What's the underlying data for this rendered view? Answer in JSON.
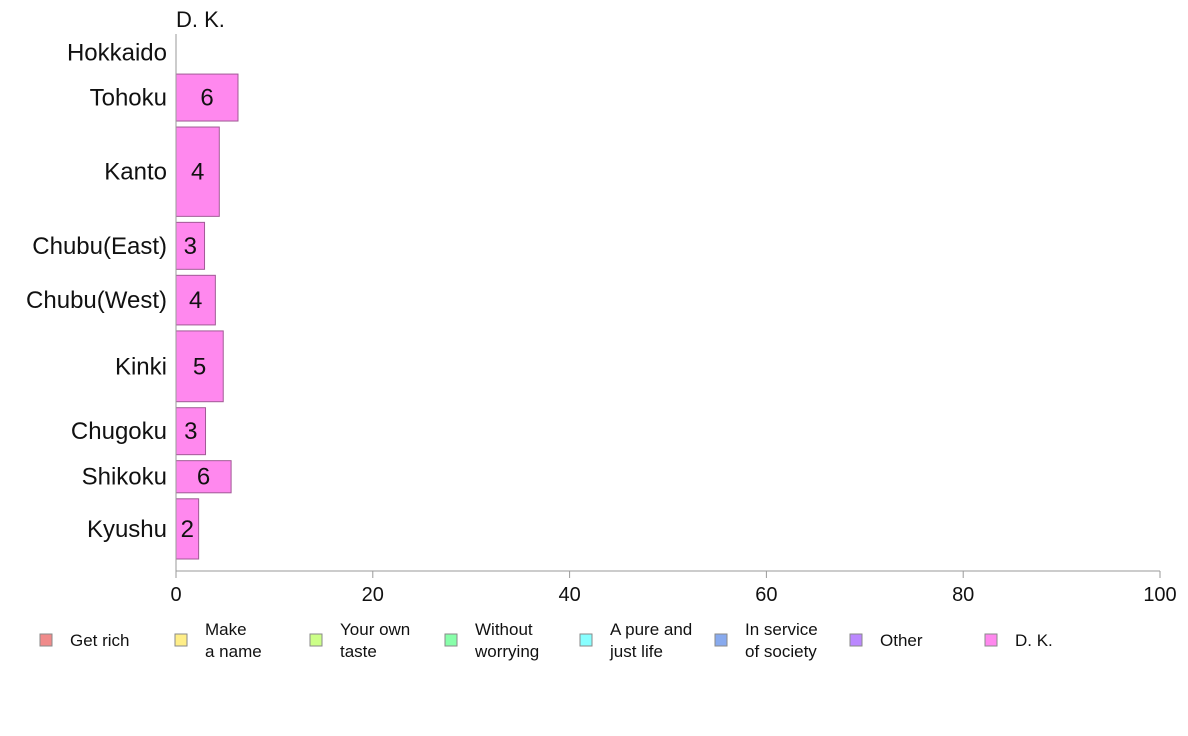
{
  "chart_data": {
    "type": "bar",
    "orientation": "horizontal",
    "title": "D. K.",
    "categories": [
      "Hokkaido",
      "Tohoku",
      "Kanto",
      "Chubu(East)",
      "Chubu(West)",
      "Kinki",
      "Chugoku",
      "Shikoku",
      "Kyushu"
    ],
    "category_weights": [
      0.7,
      1.0,
      1.8,
      1.0,
      1.05,
      1.45,
      1.0,
      0.72,
      1.25
    ],
    "series": [
      {
        "name": "D. K.",
        "color": "#ff88ee",
        "values": [
          0,
          6.3,
          4.4,
          2.9,
          4.0,
          4.8,
          3.0,
          5.6,
          2.3
        ],
        "labels": [
          "",
          "6",
          "4",
          "3",
          "4",
          "5",
          "3",
          "6",
          "2"
        ]
      }
    ],
    "xlim": [
      0,
      100
    ],
    "xticks": [
      "0",
      "20",
      "40",
      "60",
      "80",
      "100"
    ],
    "grid": false,
    "legend_position": "bottom",
    "legend": [
      {
        "lines": [
          "Get rich"
        ],
        "color": "#f08a8a"
      },
      {
        "lines": [
          "Make",
          "a name"
        ],
        "color": "#ffee88"
      },
      {
        "lines": [
          "Your own",
          "taste"
        ],
        "color": "#ccff88"
      },
      {
        "lines": [
          "Without",
          "worrying"
        ],
        "color": "#88ffaa"
      },
      {
        "lines": [
          "A pure and",
          "just life"
        ],
        "color": "#88ffff"
      },
      {
        "lines": [
          "In service",
          "of society"
        ],
        "color": "#88aaee"
      },
      {
        "lines": [
          "Other"
        ],
        "color": "#bb88ff"
      },
      {
        "lines": [
          "D. K."
        ],
        "color": "#ff88ee"
      }
    ]
  }
}
